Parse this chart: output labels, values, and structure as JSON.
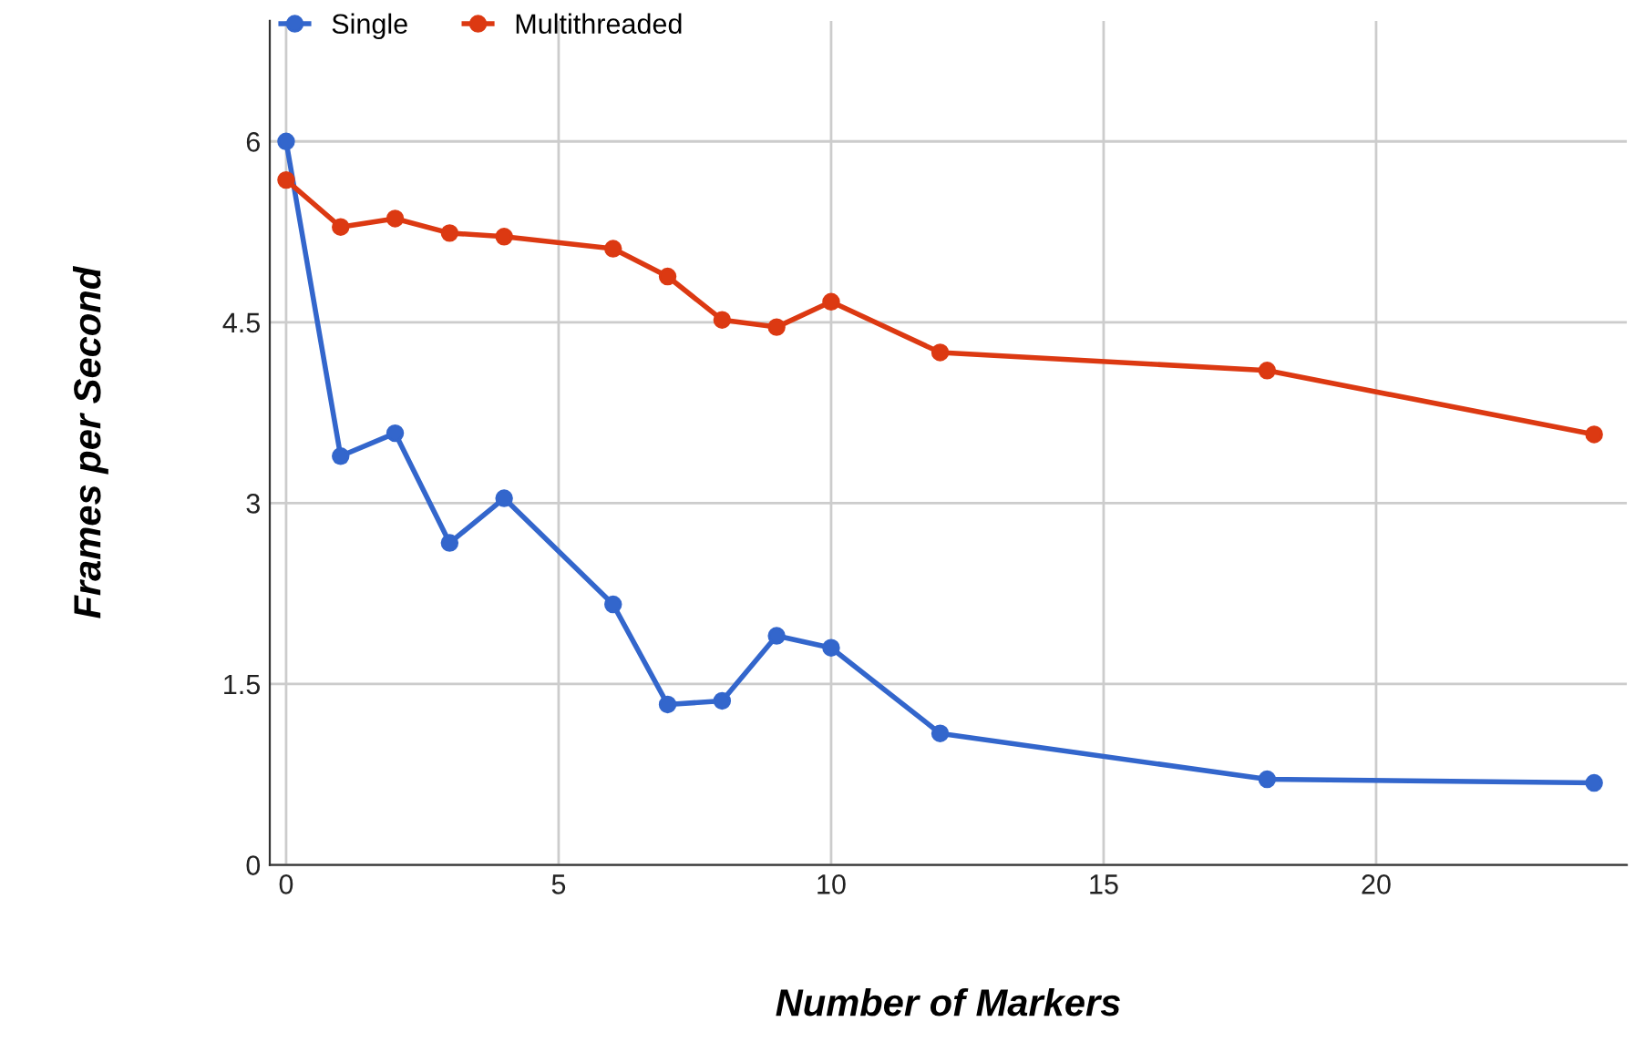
{
  "chart_data": {
    "type": "line",
    "xlabel": "Number of Markers",
    "ylabel": "Frames per Second",
    "x": [
      0,
      1,
      2,
      3,
      4,
      6,
      7,
      8,
      9,
      10,
      12,
      18,
      24
    ],
    "series": [
      {
        "name": "Single",
        "color": "#3366cc",
        "values": [
          6.0,
          3.39,
          3.58,
          2.67,
          3.04,
          2.16,
          1.33,
          1.36,
          1.9,
          1.8,
          1.09,
          0.71,
          0.68
        ]
      },
      {
        "name": "Multithreaded",
        "color": "#dc3912",
        "values": [
          5.68,
          5.29,
          5.36,
          5.24,
          5.21,
          5.11,
          4.88,
          4.52,
          4.46,
          4.67,
          4.25,
          4.1,
          3.57
        ]
      }
    ],
    "xlim": [
      -0.3,
      24.6
    ],
    "xticks": [
      0,
      5,
      10,
      15,
      20
    ],
    "ylim": [
      0,
      7
    ],
    "yticks": [
      0,
      1.5,
      3,
      4.5,
      6
    ],
    "grid": true,
    "legend": "top left",
    "marker": "circle",
    "line_style": "solid"
  }
}
